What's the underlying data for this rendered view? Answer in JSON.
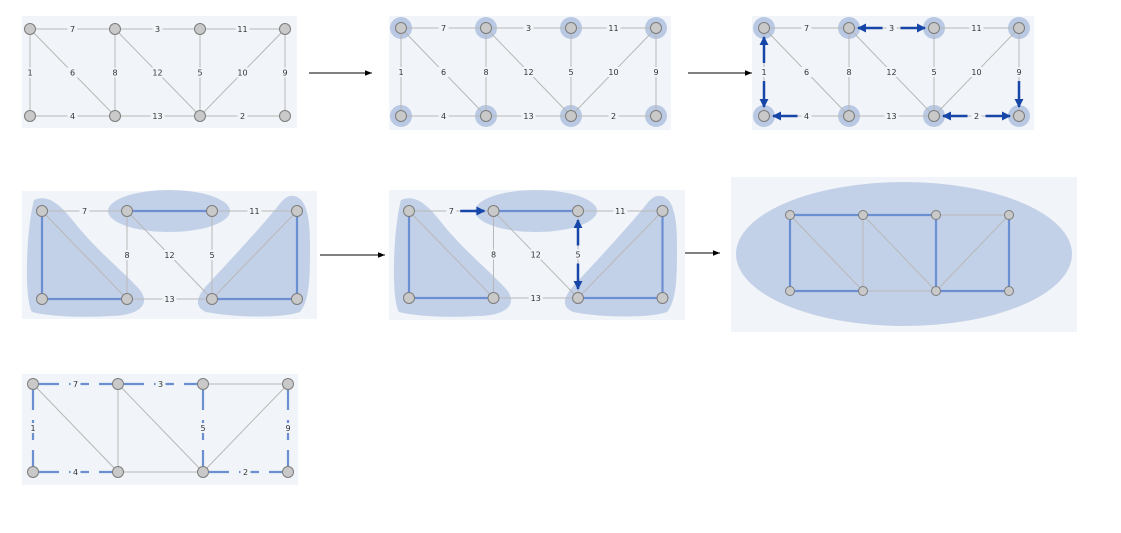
{
  "edge_labels": {
    "e1": "1",
    "e2": "2",
    "e3": "3",
    "e4": "4",
    "e5": "5",
    "e6": "6",
    "e7": "7",
    "e8": "8",
    "e9": "9",
    "e10": "10",
    "e11": "11",
    "e12": "12",
    "e13": "13"
  },
  "colors": {
    "background": "#ffffff",
    "panel": "#f1f4f8",
    "edge": "#b8b8b8",
    "node_fill": "#c9c9c9",
    "node_stroke": "#7c7c7c",
    "halo": "#b9c9e3",
    "region": "#c3d1e8",
    "tree_edge": "#6b8fd0",
    "arrow": "#1646a8",
    "flow_arrow": "#000000"
  },
  "graph": {
    "nodes": [
      {
        "id": "a",
        "col": 0,
        "row": 0
      },
      {
        "id": "b",
        "col": 1,
        "row": 0
      },
      {
        "id": "c",
        "col": 2,
        "row": 0
      },
      {
        "id": "d",
        "col": 3,
        "row": 0
      },
      {
        "id": "e",
        "col": 0,
        "row": 1
      },
      {
        "id": "f",
        "col": 1,
        "row": 1
      },
      {
        "id": "g",
        "col": 2,
        "row": 1
      },
      {
        "id": "h",
        "col": 3,
        "row": 1
      }
    ],
    "edges": [
      {
        "id": "e7",
        "from": "a",
        "to": "b"
      },
      {
        "id": "e3",
        "from": "b",
        "to": "c"
      },
      {
        "id": "e11",
        "from": "c",
        "to": "d"
      },
      {
        "id": "e4",
        "from": "e",
        "to": "f"
      },
      {
        "id": "e13",
        "from": "f",
        "to": "g"
      },
      {
        "id": "e2",
        "from": "g",
        "to": "h"
      },
      {
        "id": "e1",
        "from": "a",
        "to": "e"
      },
      {
        "id": "e8",
        "from": "b",
        "to": "f"
      },
      {
        "id": "e5",
        "from": "c",
        "to": "g"
      },
      {
        "id": "e9",
        "from": "d",
        "to": "h"
      },
      {
        "id": "e6",
        "from": "a",
        "to": "f"
      },
      {
        "id": "e12",
        "from": "b",
        "to": "g"
      },
      {
        "id": "e10",
        "from": "d",
        "to": "g"
      }
    ]
  },
  "steps": [
    {
      "step": 1,
      "labels": "all",
      "halos": false,
      "arrows": [],
      "tree": [],
      "regions": []
    },
    {
      "step": 2,
      "labels": "all",
      "halos": true,
      "arrows": [],
      "tree": [],
      "regions": []
    },
    {
      "step": 3,
      "labels": "all",
      "halos": true,
      "arrows": [
        {
          "on": "e1",
          "dir": "both"
        },
        {
          "on": "e4",
          "dir": "to-start"
        },
        {
          "on": "e3",
          "dir": "both"
        },
        {
          "on": "e9",
          "dir": "to-end"
        },
        {
          "on": "e2",
          "dir": "both"
        }
      ],
      "tree": [],
      "regions": []
    },
    {
      "step": 4,
      "labels": [
        "e7",
        "e11",
        "e8",
        "e12",
        "e5",
        "e13"
      ],
      "halos": false,
      "arrows": [],
      "tree": [
        "e1",
        "e4",
        "e3",
        "e9",
        "e2"
      ],
      "regions": [
        "left-triangle",
        "top-ellipse",
        "right-triangle"
      ]
    },
    {
      "step": 5,
      "labels": [
        "e7",
        "e11",
        "e8",
        "e12",
        "e5",
        "e13"
      ],
      "halos": false,
      "arrows": [
        {
          "on": "e7",
          "dir": "to-end"
        },
        {
          "on": "e5",
          "dir": "both"
        }
      ],
      "tree": [
        "e1",
        "e4",
        "e3",
        "e9",
        "e2"
      ],
      "regions": [
        "left-triangle",
        "top-ellipse",
        "right-triangle"
      ]
    },
    {
      "step": 6,
      "labels": [],
      "halos": false,
      "arrows": [],
      "tree": [
        "e1",
        "e4",
        "e3",
        "e9",
        "e2",
        "e7",
        "e5"
      ],
      "regions": [
        "whole-ellipse"
      ]
    },
    {
      "step": 7,
      "labels": [
        "e7",
        "e3",
        "e1",
        "e5",
        "e9",
        "e4",
        "e2"
      ],
      "halos": false,
      "arrows": [],
      "tree": [],
      "dashed": [
        "e7",
        "e3",
        "e1",
        "e5",
        "e9",
        "e4",
        "e2"
      ],
      "regions": []
    }
  ]
}
